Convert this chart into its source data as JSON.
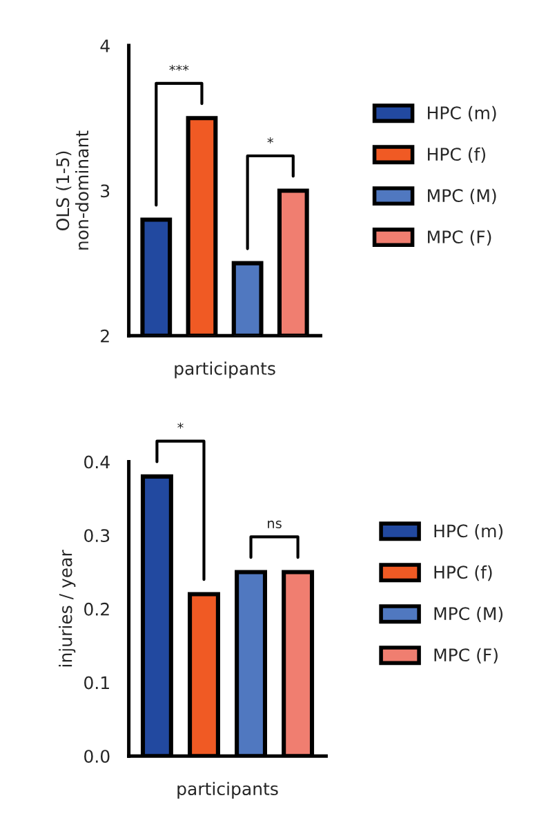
{
  "chart_data": [
    {
      "type": "bar",
      "ylabel": "OLS (1-5)\nnon-dominant",
      "xlabel": "participants",
      "categories": [
        null,
        null,
        null,
        null
      ],
      "series": [
        {
          "name": "HPC (m)",
          "color": "#2249a0",
          "values": [
            2.8,
            null,
            null,
            null
          ]
        },
        {
          "name": "HPC (f)",
          "color": "#f05a24",
          "values": [
            null,
            3.5,
            null,
            null
          ]
        },
        {
          "name": "MPC (M)",
          "color": "#5078c0",
          "values": [
            null,
            null,
            2.5,
            null
          ]
        },
        {
          "name": "MPC (F)",
          "color": "#f07e70",
          "values": [
            null,
            null,
            null,
            3.0
          ]
        }
      ],
      "ylim": [
        2,
        4
      ],
      "yticks": [
        2,
        3,
        4
      ],
      "grid": false,
      "legend": "right",
      "stacked": true,
      "annotations": [
        "***",
        "*"
      ]
    },
    {
      "type": "bar",
      "ylabel": "injuries / year",
      "xlabel": "participants",
      "categories": [
        null,
        null,
        null,
        null
      ],
      "series": [
        {
          "name": "HPC (m)",
          "color": "#2249a0",
          "values": [
            0.38,
            null,
            null,
            null
          ]
        },
        {
          "name": "HPC (f)",
          "color": "#f05a24",
          "values": [
            null,
            0.22,
            null,
            null
          ]
        },
        {
          "name": "MPC (M)",
          "color": "#5078c0",
          "values": [
            null,
            null,
            0.25,
            null
          ]
        },
        {
          "name": "MPC (F)",
          "color": "#f07e70",
          "values": [
            null,
            null,
            null,
            0.25
          ]
        }
      ],
      "ylim": [
        0,
        0.4
      ],
      "yticks": [
        {
          "value": 0,
          "label": "0.0"
        },
        0.1,
        0.2,
        0.3,
        0.4
      ],
      "grid": false,
      "legend": "right",
      "stacked": true,
      "annotations": [
        "*",
        "ns"
      ]
    }
  ]
}
